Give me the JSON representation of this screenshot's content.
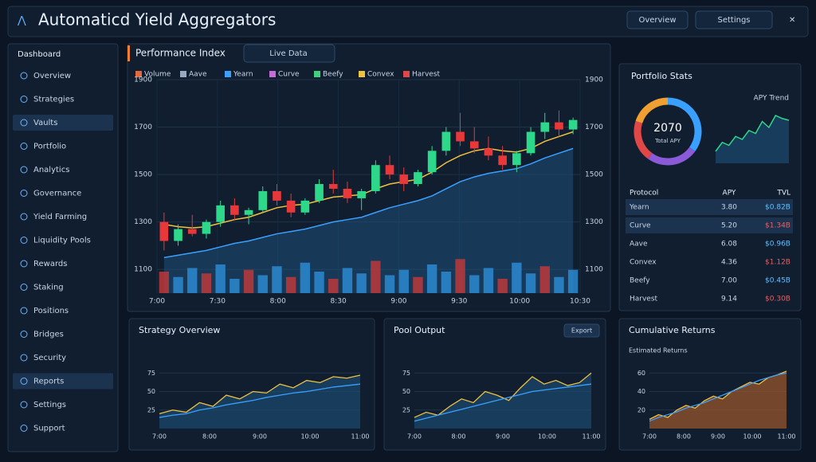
{
  "header": {
    "title": "Automaticd Yield Aggregators",
    "buttons": [
      "Overview",
      "Settings"
    ]
  },
  "sidebar": {
    "title": "Dashboard",
    "items": [
      "Overview",
      "Strategies",
      "Vaults",
      "Portfolio",
      "Analytics",
      "Governance",
      "Yield Farming",
      "Liquidity Pools",
      "Rewards",
      "Staking",
      "Positions",
      "Bridges",
      "Security",
      "Reports",
      "Settings",
      "Support"
    ],
    "active": [
      2,
      13
    ]
  },
  "main_chart": {
    "type": "candlestick",
    "title": "Performance Index",
    "button": "Live Data",
    "legend": [
      {
        "name": "Volume",
        "color": "#e0683a"
      },
      {
        "name": "Aave",
        "color": "#9aa8c0"
      },
      {
        "name": "Yearn",
        "color": "#3aa0ff"
      },
      {
        "name": "Curve",
        "color": "#c86ad8"
      },
      {
        "name": "Beefy",
        "color": "#3fd17a"
      },
      {
        "name": "Convex",
        "color": "#f0c040"
      },
      {
        "name": "Harvest",
        "color": "#e04848"
      }
    ],
    "candles": [
      [
        1300,
        1340,
        1180,
        1220
      ],
      [
        1220,
        1290,
        1200,
        1270
      ],
      [
        1270,
        1330,
        1240,
        1250
      ],
      [
        1250,
        1310,
        1230,
        1300
      ],
      [
        1300,
        1390,
        1280,
        1370
      ],
      [
        1370,
        1400,
        1310,
        1330
      ],
      [
        1330,
        1360,
        1290,
        1350
      ],
      [
        1350,
        1450,
        1340,
        1430
      ],
      [
        1430,
        1460,
        1370,
        1390
      ],
      [
        1390,
        1420,
        1320,
        1340
      ],
      [
        1340,
        1400,
        1330,
        1390
      ],
      [
        1390,
        1480,
        1380,
        1460
      ],
      [
        1460,
        1520,
        1420,
        1440
      ],
      [
        1440,
        1470,
        1380,
        1400
      ],
      [
        1400,
        1440,
        1350,
        1430
      ],
      [
        1430,
        1560,
        1420,
        1540
      ],
      [
        1540,
        1580,
        1480,
        1500
      ],
      [
        1500,
        1530,
        1430,
        1460
      ],
      [
        1460,
        1520,
        1450,
        1510
      ],
      [
        1510,
        1620,
        1500,
        1600
      ],
      [
        1600,
        1700,
        1580,
        1680
      ],
      [
        1680,
        1760,
        1620,
        1640
      ],
      [
        1640,
        1700,
        1590,
        1610
      ],
      [
        1610,
        1660,
        1560,
        1580
      ],
      [
        1580,
        1620,
        1520,
        1540
      ],
      [
        1540,
        1600,
        1510,
        1590
      ],
      [
        1590,
        1700,
        1580,
        1680
      ],
      [
        1680,
        1760,
        1650,
        1720
      ],
      [
        1720,
        1770,
        1660,
        1690
      ],
      [
        1690,
        1740,
        1670,
        1730
      ]
    ],
    "volume": [
      60,
      45,
      70,
      55,
      80,
      40,
      65,
      50,
      75,
      45,
      85,
      60,
      40,
      70,
      55,
      90,
      50,
      65,
      45,
      80,
      60,
      95,
      50,
      70,
      40,
      85,
      55,
      75,
      45,
      65
    ],
    "ma1": [
      1290,
      1280,
      1275,
      1280,
      1295,
      1310,
      1320,
      1340,
      1360,
      1370,
      1375,
      1390,
      1405,
      1410,
      1415,
      1440,
      1460,
      1470,
      1480,
      1510,
      1550,
      1580,
      1600,
      1610,
      1600,
      1595,
      1610,
      1640,
      1660,
      1680
    ],
    "ma2": [
      1150,
      1160,
      1170,
      1180,
      1195,
      1210,
      1220,
      1235,
      1250,
      1260,
      1270,
      1285,
      1300,
      1310,
      1320,
      1340,
      1360,
      1375,
      1390,
      1410,
      1440,
      1470,
      1490,
      1505,
      1515,
      1525,
      1545,
      1570,
      1590,
      1610
    ],
    "ylim": [
      1000,
      1900
    ],
    "yticks": [
      1100,
      1300,
      1500,
      1700,
      1900
    ],
    "vlim": [
      0,
      100
    ],
    "xlabels": [
      "7:00",
      "7:30",
      "8:00",
      "8:30",
      "9:00",
      "9:30",
      "10:00",
      "10:30"
    ]
  },
  "right_panel": {
    "title": "Portfolio Stats",
    "donut": {
      "center": "2070",
      "sub": "Total APY",
      "segments": [
        {
          "value": 35,
          "color": "#3aa0ff"
        },
        {
          "value": 25,
          "color": "#8a5ad8"
        },
        {
          "value": 20,
          "color": "#e04848"
        },
        {
          "value": 20,
          "color": "#f0a030"
        }
      ]
    },
    "spark": {
      "label": "APY Trend",
      "values": [
        20,
        35,
        30,
        45,
        40,
        55,
        50,
        70,
        60,
        80,
        75,
        72
      ],
      "ylim": [
        0,
        100
      ]
    },
    "table": {
      "header": [
        "Protocol",
        "APY",
        "TVL"
      ],
      "rows": [
        [
          "Yearn",
          "3.80",
          "$0.82B"
        ],
        [
          "Curve",
          "5.20",
          "$1.34B"
        ],
        [
          "Aave",
          "6.08",
          "$0.96B"
        ],
        [
          "Convex",
          "4.36",
          "$1.12B"
        ],
        [
          "Beefy",
          "7.00",
          "$0.45B"
        ],
        [
          "Harvest",
          "9.14",
          "$0.30B"
        ]
      ]
    }
  },
  "bottom_charts": [
    {
      "title": "Strategy Overview",
      "values": [
        20,
        25,
        22,
        35,
        30,
        45,
        40,
        50,
        48,
        60,
        55,
        65,
        62,
        70,
        68,
        72
      ],
      "values2": [
        15,
        18,
        20,
        25,
        28,
        32,
        35,
        38,
        42,
        45,
        48,
        50,
        53,
        56,
        58,
        60
      ],
      "ylim": [
        0,
        100
      ],
      "yticks": [
        25,
        50,
        75
      ],
      "xlabels": [
        "7:00",
        "8:00",
        "9:00",
        "10:00",
        "11:00"
      ]
    },
    {
      "title": "Pool Output",
      "button": "Export",
      "values": [
        15,
        22,
        18,
        30,
        40,
        35,
        50,
        45,
        38,
        55,
        70,
        60,
        65,
        58,
        62,
        75
      ],
      "values2": [
        10,
        14,
        18,
        22,
        26,
        30,
        34,
        38,
        42,
        46,
        50,
        52,
        54,
        56,
        58,
        60
      ],
      "ylim": [
        0,
        100
      ],
      "yticks": [
        25,
        50,
        75
      ],
      "xlabels": [
        "7:00",
        "8:00",
        "9:00",
        "10:00",
        "11:00"
      ]
    },
    {
      "title": "Cumulative Returns",
      "subtitle": "Estimated Returns",
      "values": [
        10,
        15,
        12,
        20,
        25,
        22,
        30,
        35,
        32,
        40,
        45,
        50,
        48,
        55,
        58,
        62
      ],
      "values2": [
        8,
        12,
        15,
        18,
        22,
        25,
        28,
        32,
        36,
        40,
        44,
        48,
        52,
        55,
        58,
        60
      ],
      "ylim": [
        0,
        80
      ],
      "yticks": [
        20,
        40,
        60
      ],
      "xlabels": [
        "7:00",
        "8:00",
        "9:00",
        "10:00",
        "11:00"
      ]
    }
  ]
}
